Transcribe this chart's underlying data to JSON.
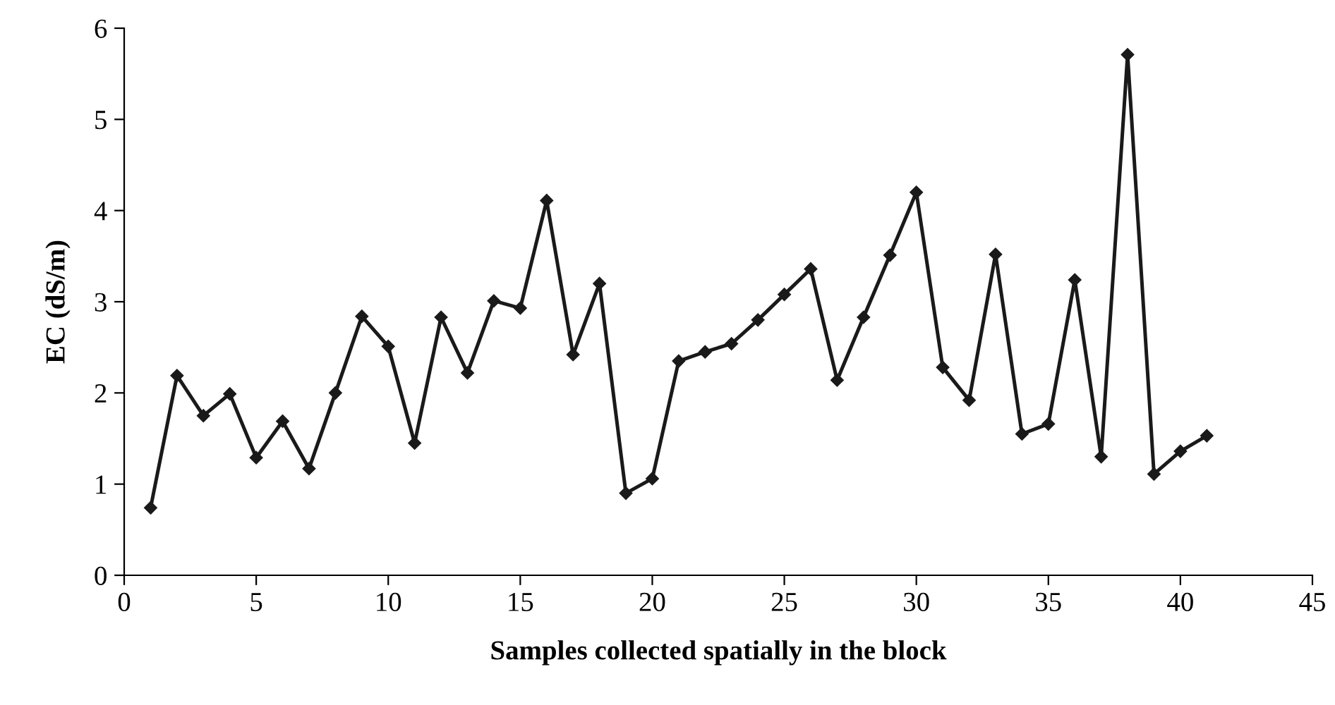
{
  "chart_data": {
    "type": "line",
    "xlabel": "Samples collected spatially in the block",
    "ylabel": "EC (dS/m)",
    "x": [
      1,
      2,
      3,
      4,
      5,
      6,
      7,
      8,
      9,
      10,
      11,
      12,
      13,
      14,
      15,
      16,
      17,
      18,
      19,
      20,
      21,
      22,
      23,
      24,
      25,
      26,
      27,
      28,
      29,
      30,
      31,
      32,
      33,
      34,
      35,
      36,
      37,
      38,
      39,
      40,
      41
    ],
    "series": [
      {
        "color": "#1a1a1a",
        "values": [
          0.74,
          2.19,
          1.75,
          1.99,
          1.29,
          1.69,
          1.17,
          2.0,
          2.84,
          2.51,
          1.45,
          2.83,
          2.22,
          3.01,
          2.93,
          4.11,
          2.42,
          3.2,
          0.9,
          1.06,
          2.35,
          2.45,
          2.54,
          2.8,
          3.08,
          3.36,
          2.14,
          2.83,
          3.51,
          4.2,
          2.28,
          1.92,
          3.52,
          1.55,
          1.66,
          3.24,
          1.3,
          5.71,
          1.11,
          1.36,
          1.53
        ]
      }
    ],
    "xlim": [
      0,
      45
    ],
    "xticks": [
      0,
      5,
      10,
      15,
      20,
      25,
      30,
      35,
      40,
      45
    ],
    "ylim": [
      0,
      6
    ],
    "yticks": [
      0,
      1,
      2,
      3,
      4,
      5,
      6
    ],
    "marker": "diamond",
    "line_style": "solid",
    "grid": false,
    "legend": false
  }
}
